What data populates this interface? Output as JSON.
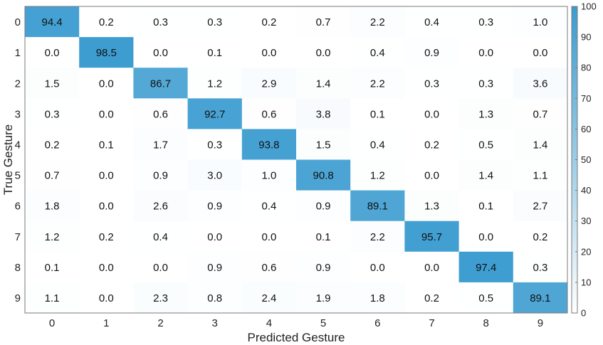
{
  "chart_data": {
    "type": "heatmap",
    "xlabel": "Predicted Gesture",
    "ylabel": "True Gesture",
    "x_categories": [
      "0",
      "1",
      "2",
      "3",
      "4",
      "5",
      "6",
      "7",
      "8",
      "9"
    ],
    "y_categories": [
      "0",
      "1",
      "2",
      "3",
      "4",
      "5",
      "6",
      "7",
      "8",
      "9"
    ],
    "values": [
      [
        94.4,
        0.2,
        0.3,
        0.3,
        0.2,
        0.7,
        2.2,
        0.4,
        0.3,
        1.0
      ],
      [
        0.0,
        98.5,
        0.0,
        0.1,
        0.0,
        0.0,
        0.4,
        0.9,
        0.0,
        0.0
      ],
      [
        1.5,
        0.0,
        86.7,
        1.2,
        2.9,
        1.4,
        2.2,
        0.3,
        0.3,
        3.6
      ],
      [
        0.3,
        0.0,
        0.6,
        92.7,
        0.6,
        3.8,
        0.1,
        0.0,
        1.3,
        0.7
      ],
      [
        0.2,
        0.1,
        1.7,
        0.3,
        93.8,
        1.5,
        0.4,
        0.2,
        0.5,
        1.4
      ],
      [
        0.7,
        0.0,
        0.9,
        3.0,
        1.0,
        90.8,
        1.2,
        0.0,
        1.4,
        1.1
      ],
      [
        1.8,
        0.0,
        2.6,
        0.9,
        0.4,
        0.9,
        89.1,
        1.3,
        0.1,
        2.7
      ],
      [
        1.2,
        0.2,
        0.4,
        0.0,
        0.0,
        0.1,
        2.2,
        95.7,
        0.0,
        0.2
      ],
      [
        0.1,
        0.0,
        0.0,
        0.9,
        0.6,
        0.9,
        0.0,
        0.0,
        97.4,
        0.3
      ],
      [
        1.1,
        0.0,
        2.3,
        0.8,
        2.4,
        1.9,
        1.8,
        0.2,
        0.5,
        89.1
      ]
    ],
    "colorbar": {
      "range": [
        0,
        100
      ],
      "ticks": [
        "0",
        "10",
        "20",
        "30",
        "40",
        "50",
        "60",
        "70",
        "80",
        "90",
        "100"
      ]
    },
    "colors": {
      "low": "#ffffff",
      "high": "#3a9bd0"
    }
  }
}
